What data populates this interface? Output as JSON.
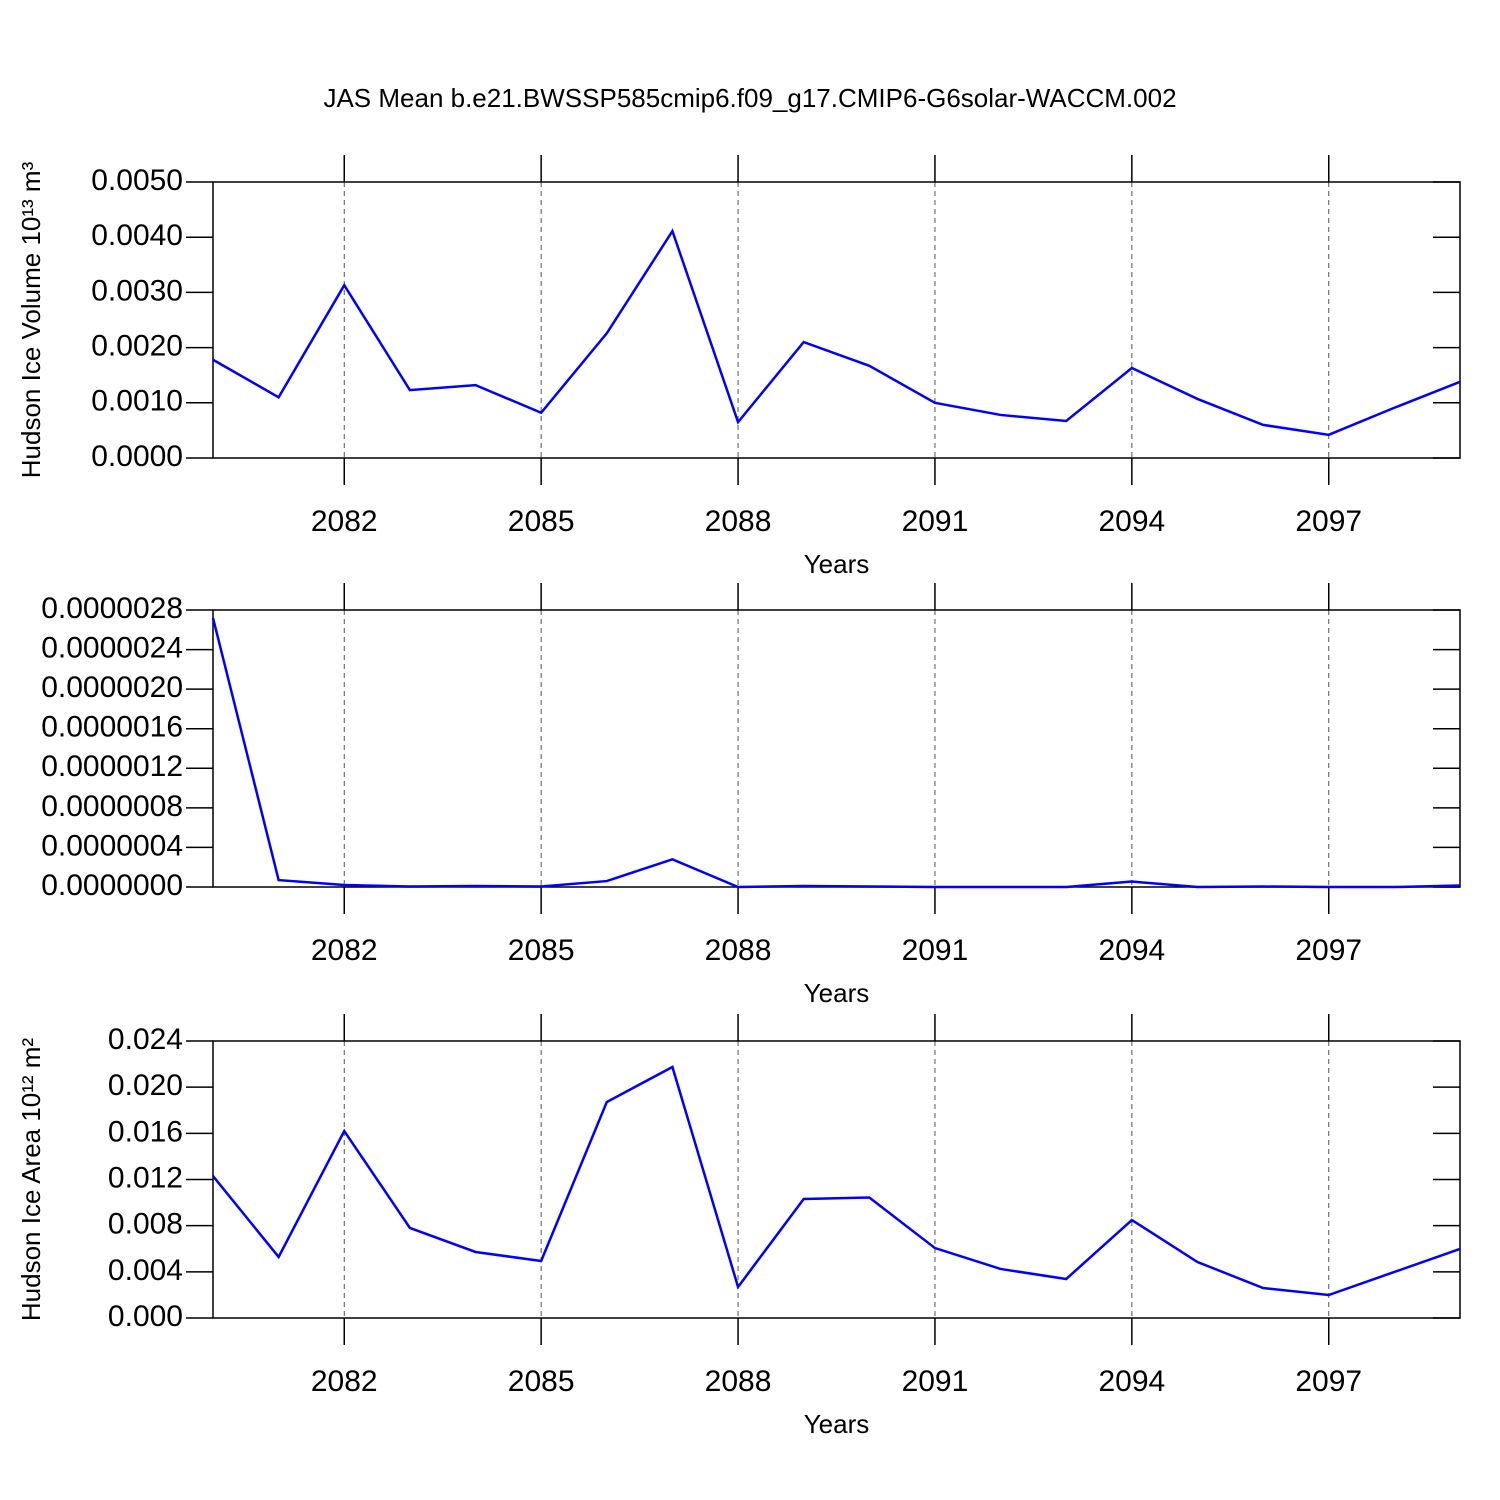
{
  "chart_data": [
    {
      "type": "line",
      "title": "JAS Mean b.e21.BWSSP585cmip6.f09_g17.CMIP6-G6solar-WACCM.002",
      "y_label": "Hudson Ice Volume 10¹³ m³",
      "x_label": "Years",
      "x": [
        2080,
        2081,
        2082,
        2083,
        2084,
        2085,
        2086,
        2087,
        2088,
        2089,
        2090,
        2091,
        2092,
        2093,
        2094,
        2095,
        2096,
        2097,
        2098,
        2099
      ],
      "values": [
        0.00178,
        0.0011,
        0.00313,
        0.00123,
        0.00132,
        0.00082,
        0.00226,
        0.00411,
        0.00065,
        0.0021,
        0.00167,
        0.001,
        0.00078,
        0.00067,
        0.00163,
        0.00107,
        0.0006,
        0.00042,
        0.00091,
        0.00138
      ],
      "color": "#0000ff",
      "xlim": [
        2080,
        2099
      ],
      "xticks": [
        2082,
        2085,
        2088,
        2091,
        2094,
        2097
      ],
      "ylim": [
        0,
        0.005
      ],
      "yticks": [
        {
          "value": 0,
          "label": "0.0000"
        },
        {
          "value": 0.001,
          "label": "0.0010"
        },
        {
          "value": 0.002,
          "label": "0.0020"
        },
        {
          "value": 0.003,
          "label": "0.0030"
        },
        {
          "value": 0.004,
          "label": "0.0040"
        },
        {
          "value": 0.005,
          "label": "0.0050"
        }
      ],
      "grid": true
    },
    {
      "type": "line",
      "x_label": "Years",
      "x": [
        2080,
        2081,
        2082,
        2083,
        2084,
        2085,
        2086,
        2087,
        2088,
        2089,
        2090,
        2091,
        2092,
        2093,
        2094,
        2095,
        2096,
        2097,
        2098,
        2099
      ],
      "values": [
        2.72e-06,
        7e-08,
        2e-08,
        5e-09,
        1e-08,
        5e-09,
        6e-08,
        2.8e-07,
        0,
        1e-08,
        5e-09,
        0,
        0,
        0,
        5.5e-08,
        0,
        5e-09,
        0,
        0,
        1.5e-08
      ],
      "color": "#0000ff",
      "xlim": [
        2080,
        2099
      ],
      "xticks": [
        2082,
        2085,
        2088,
        2091,
        2094,
        2097
      ],
      "ylim": [
        0,
        2.8e-06
      ],
      "yticks": [
        {
          "value": 0,
          "label": "0.0000000"
        },
        {
          "value": 4e-07,
          "label": "0.0000004"
        },
        {
          "value": 8e-07,
          "label": "0.0000008"
        },
        {
          "value": 1.2e-06,
          "label": "0.0000012"
        },
        {
          "value": 1.6e-06,
          "label": "0.0000016"
        },
        {
          "value": 2e-06,
          "label": "0.0000020"
        },
        {
          "value": 2.4e-06,
          "label": "0.0000024"
        },
        {
          "value": 2.8e-06,
          "label": "0.0000028"
        }
      ],
      "grid": true
    },
    {
      "type": "line",
      "y_label": "Hudson Ice Area 10¹² m²",
      "x_label": "Years",
      "x": [
        2080,
        2081,
        2082,
        2083,
        2084,
        2085,
        2086,
        2087,
        2088,
        2089,
        2090,
        2091,
        2092,
        2093,
        2094,
        2095,
        2096,
        2097,
        2098,
        2099
      ],
      "values": [
        0.0123,
        0.00529,
        0.0162,
        0.0078,
        0.00572,
        0.00494,
        0.01871,
        0.02175,
        0.00269,
        0.01031,
        0.01044,
        0.00606,
        0.00425,
        0.00338,
        0.00849,
        0.00485,
        0.0026,
        0.00199,
        0.00399,
        0.00598
      ],
      "color": "#0000ff",
      "xlim": [
        2080,
        2099
      ],
      "xticks": [
        2082,
        2085,
        2088,
        2091,
        2094,
        2097
      ],
      "ylim": [
        0,
        0.024
      ],
      "yticks": [
        {
          "value": 0,
          "label": "0.000"
        },
        {
          "value": 0.004,
          "label": "0.004"
        },
        {
          "value": 0.008,
          "label": "0.008"
        },
        {
          "value": 0.012,
          "label": "0.012"
        },
        {
          "value": 0.016,
          "label": "0.016"
        },
        {
          "value": 0.02,
          "label": "0.020"
        },
        {
          "value": 0.024,
          "label": "0.024"
        }
      ],
      "grid": true
    }
  ]
}
